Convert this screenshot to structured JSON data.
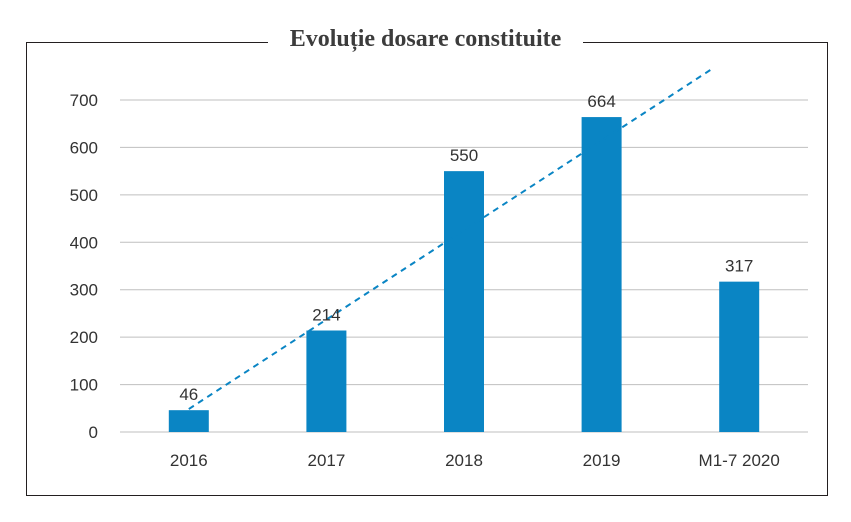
{
  "chart_data": {
    "type": "bar",
    "title": "Evoluție dosare constituite",
    "categories": [
      "2016",
      "2017",
      "2018",
      "2019",
      "M1-7 2020"
    ],
    "series": [
      {
        "values": [
          46,
          214,
          550,
          664,
          317
        ]
      }
    ],
    "trendline": {
      "style": "dashed",
      "type": "linear"
    },
    "ylim": [
      0,
      700
    ],
    "yticks": [
      0,
      100,
      200,
      300,
      400,
      500,
      600,
      700
    ],
    "grid": true,
    "legend": "none",
    "colors": {
      "bar": "#0a85c4",
      "trend": "#0a85c4",
      "grid": "#bfbfbf"
    }
  }
}
